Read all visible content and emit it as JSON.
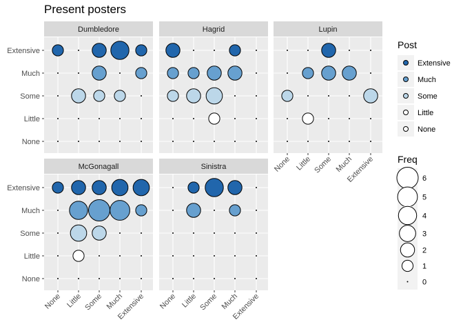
{
  "title": "Present posters",
  "chart_data": {
    "type": "scatter",
    "title": "Present posters",
    "levels": [
      "None",
      "Little",
      "Some",
      "Much",
      "Extensive"
    ],
    "facet_order": [
      "Dumbledore",
      "Hagrid",
      "Lupin",
      "McGonagall",
      "Sinistra"
    ],
    "legend_fill": {
      "title": "Post",
      "placement": "right",
      "entries": [
        "Extensive",
        "Much",
        "Some",
        "Little",
        "None"
      ],
      "colors": {
        "Extensive": "#2166ac",
        "Much": "#67a0cf",
        "Some": "#bcd7e9",
        "Little": "#ffffff",
        "None": "#ffffff"
      }
    },
    "legend_size": {
      "title": "Freq",
      "values": [
        6,
        5,
        4,
        3,
        2,
        1,
        0
      ]
    },
    "facets": [
      {
        "name": "Dumbledore",
        "points": [
          {
            "x": "None",
            "y": "Extensive",
            "freq": 1
          },
          {
            "x": "Some",
            "y": "Extensive",
            "freq": 2
          },
          {
            "x": "Much",
            "y": "Extensive",
            "freq": 4
          },
          {
            "x": "Extensive",
            "y": "Extensive",
            "freq": 1
          },
          {
            "x": "Some",
            "y": "Much",
            "freq": 2
          },
          {
            "x": "Extensive",
            "y": "Much",
            "freq": 1
          },
          {
            "x": "Little",
            "y": "Some",
            "freq": 2
          },
          {
            "x": "Some",
            "y": "Some",
            "freq": 1
          },
          {
            "x": "Much",
            "y": "Some",
            "freq": 1
          }
        ]
      },
      {
        "name": "Hagrid",
        "points": [
          {
            "x": "None",
            "y": "Extensive",
            "freq": 2
          },
          {
            "x": "Much",
            "y": "Extensive",
            "freq": 1
          },
          {
            "x": "None",
            "y": "Much",
            "freq": 1
          },
          {
            "x": "Little",
            "y": "Much",
            "freq": 1
          },
          {
            "x": "Some",
            "y": "Much",
            "freq": 2
          },
          {
            "x": "Much",
            "y": "Much",
            "freq": 2
          },
          {
            "x": "None",
            "y": "Some",
            "freq": 1
          },
          {
            "x": "Little",
            "y": "Some",
            "freq": 2
          },
          {
            "x": "Some",
            "y": "Some",
            "freq": 3
          },
          {
            "x": "Some",
            "y": "Little",
            "freq": 1
          }
        ]
      },
      {
        "name": "Lupin",
        "points": [
          {
            "x": "Some",
            "y": "Extensive",
            "freq": 2
          },
          {
            "x": "Little",
            "y": "Much",
            "freq": 1
          },
          {
            "x": "Some",
            "y": "Much",
            "freq": 2
          },
          {
            "x": "Much",
            "y": "Much",
            "freq": 2
          },
          {
            "x": "None",
            "y": "Some",
            "freq": 1
          },
          {
            "x": "Extensive",
            "y": "Some",
            "freq": 2
          },
          {
            "x": "Little",
            "y": "Little",
            "freq": 1
          }
        ]
      },
      {
        "name": "McGonagall",
        "points": [
          {
            "x": "None",
            "y": "Extensive",
            "freq": 1
          },
          {
            "x": "Little",
            "y": "Extensive",
            "freq": 2
          },
          {
            "x": "Some",
            "y": "Extensive",
            "freq": 2
          },
          {
            "x": "Much",
            "y": "Extensive",
            "freq": 3
          },
          {
            "x": "Extensive",
            "y": "Extensive",
            "freq": 3
          },
          {
            "x": "Little",
            "y": "Much",
            "freq": 4
          },
          {
            "x": "Some",
            "y": "Much",
            "freq": 6
          },
          {
            "x": "Much",
            "y": "Much",
            "freq": 5
          },
          {
            "x": "Extensive",
            "y": "Much",
            "freq": 1
          },
          {
            "x": "Little",
            "y": "Some",
            "freq": 3
          },
          {
            "x": "Some",
            "y": "Some",
            "freq": 2
          },
          {
            "x": "Little",
            "y": "Little",
            "freq": 1
          }
        ]
      },
      {
        "name": "Sinistra",
        "points": [
          {
            "x": "Little",
            "y": "Extensive",
            "freq": 1
          },
          {
            "x": "Some",
            "y": "Extensive",
            "freq": 4
          },
          {
            "x": "Much",
            "y": "Extensive",
            "freq": 2
          },
          {
            "x": "Little",
            "y": "Much",
            "freq": 2
          },
          {
            "x": "Much",
            "y": "Much",
            "freq": 1
          }
        ]
      }
    ]
  }
}
